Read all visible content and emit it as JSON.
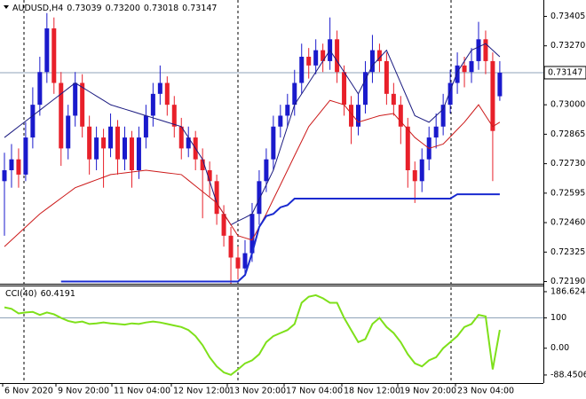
{
  "chart_data": {
    "type": "candlestick",
    "symbol": "AUDUSD,H4",
    "last_value_labels": [
      "0.73039",
      "0.73200",
      "0.73018",
      "0.73147"
    ],
    "bull_color": "#1a1acc",
    "bear_color": "#e8202a",
    "ylim": [
      0.7218,
      0.7348
    ],
    "yticks": [
      {
        "value": 0.73405,
        "label": "0.73405"
      },
      {
        "value": 0.7327,
        "label": "0.73270"
      },
      {
        "value": 0.73,
        "label": "0.73000"
      },
      {
        "value": 0.72865,
        "label": "0.72865"
      },
      {
        "value": 0.7273,
        "label": "0.72730"
      },
      {
        "value": 0.72595,
        "label": "0.72595"
      },
      {
        "value": 0.7246,
        "label": "0.72460"
      },
      {
        "value": 0.72325,
        "label": "0.72325"
      },
      {
        "value": 0.7219,
        "label": "0.72190"
      }
    ],
    "x_labels": [
      "6 Nov 2020",
      "9 Nov 20:00",
      "11 Nov 04:00",
      "12 Nov 12:00",
      "13 Nov 20:00",
      "17 Nov 04:00",
      "18 Nov 12:00",
      "19 Nov 20:00",
      "23 Nov 04:00"
    ],
    "candles": [
      [
        0.7265,
        0.7278,
        0.724,
        0.727
      ],
      [
        0.727,
        0.7282,
        0.7262,
        0.7275
      ],
      [
        0.7275,
        0.728,
        0.7262,
        0.7268
      ],
      [
        0.7268,
        0.7292,
        0.7265,
        0.7285
      ],
      [
        0.7285,
        0.7308,
        0.728,
        0.73
      ],
      [
        0.73,
        0.7322,
        0.7295,
        0.7315
      ],
      [
        0.7315,
        0.7342,
        0.731,
        0.7335
      ],
      [
        0.7335,
        0.734,
        0.7305,
        0.731
      ],
      [
        0.731,
        0.7315,
        0.7272,
        0.728
      ],
      [
        0.728,
        0.73,
        0.7275,
        0.7295
      ],
      [
        0.7295,
        0.7315,
        0.729,
        0.731
      ],
      [
        0.731,
        0.7314,
        0.7285,
        0.729
      ],
      [
        0.729,
        0.7295,
        0.7268,
        0.7275
      ],
      [
        0.7275,
        0.729,
        0.727,
        0.7285
      ],
      [
        0.7285,
        0.7289,
        0.7262,
        0.728
      ],
      [
        0.728,
        0.7296,
        0.7276,
        0.729
      ],
      [
        0.729,
        0.7293,
        0.7268,
        0.7275
      ],
      [
        0.7275,
        0.729,
        0.727,
        0.7285
      ],
      [
        0.7285,
        0.7288,
        0.7262,
        0.727
      ],
      [
        0.727,
        0.729,
        0.7266,
        0.7285
      ],
      [
        0.7285,
        0.73,
        0.728,
        0.7295
      ],
      [
        0.7295,
        0.731,
        0.729,
        0.7305
      ],
      [
        0.7305,
        0.7318,
        0.73,
        0.731
      ],
      [
        0.731,
        0.7313,
        0.7295,
        0.73
      ],
      [
        0.73,
        0.7304,
        0.7285,
        0.729
      ],
      [
        0.729,
        0.7294,
        0.7275,
        0.728
      ],
      [
        0.728,
        0.729,
        0.7276,
        0.7285
      ],
      [
        0.7285,
        0.7288,
        0.727,
        0.7275
      ],
      [
        0.7275,
        0.728,
        0.7248,
        0.727
      ],
      [
        0.727,
        0.7274,
        0.7258,
        0.7265
      ],
      [
        0.7265,
        0.7268,
        0.7245,
        0.725
      ],
      [
        0.725,
        0.7254,
        0.7235,
        0.724
      ],
      [
        0.724,
        0.7244,
        0.7218,
        0.723
      ],
      [
        0.723,
        0.7235,
        0.722,
        0.7225
      ],
      [
        0.7225,
        0.7238,
        0.7222,
        0.7232
      ],
      [
        0.7232,
        0.7255,
        0.7228,
        0.725
      ],
      [
        0.725,
        0.727,
        0.7245,
        0.7265
      ],
      [
        0.7265,
        0.728,
        0.726,
        0.7275
      ],
      [
        0.7275,
        0.7295,
        0.727,
        0.729
      ],
      [
        0.729,
        0.73,
        0.7285,
        0.7295
      ],
      [
        0.7295,
        0.7305,
        0.729,
        0.73
      ],
      [
        0.73,
        0.7316,
        0.7295,
        0.731
      ],
      [
        0.731,
        0.7328,
        0.7305,
        0.7322
      ],
      [
        0.7322,
        0.7326,
        0.7312,
        0.7318
      ],
      [
        0.7318,
        0.733,
        0.7314,
        0.7325
      ],
      [
        0.7325,
        0.7328,
        0.7315,
        0.732
      ],
      [
        0.732,
        0.734,
        0.7316,
        0.733
      ],
      [
        0.733,
        0.7334,
        0.731,
        0.7315
      ],
      [
        0.7315,
        0.7318,
        0.7295,
        0.73
      ],
      [
        0.73,
        0.7304,
        0.7282,
        0.729
      ],
      [
        0.729,
        0.7305,
        0.7286,
        0.73
      ],
      [
        0.73,
        0.732,
        0.7296,
        0.7315
      ],
      [
        0.7315,
        0.7332,
        0.731,
        0.7325
      ],
      [
        0.7325,
        0.7328,
        0.7315,
        0.732
      ],
      [
        0.732,
        0.7324,
        0.73,
        0.7305
      ],
      [
        0.7305,
        0.731,
        0.7295,
        0.73
      ],
      [
        0.73,
        0.7304,
        0.7282,
        0.729
      ],
      [
        0.729,
        0.7294,
        0.7262,
        0.727
      ],
      [
        0.727,
        0.7274,
        0.7255,
        0.7265
      ],
      [
        0.7265,
        0.728,
        0.726,
        0.7275
      ],
      [
        0.7275,
        0.729,
        0.727,
        0.7285
      ],
      [
        0.7285,
        0.7296,
        0.728,
        0.729
      ],
      [
        0.729,
        0.7305,
        0.7286,
        0.73
      ],
      [
        0.73,
        0.7316,
        0.7296,
        0.731
      ],
      [
        0.731,
        0.7324,
        0.7305,
        0.7318
      ],
      [
        0.7318,
        0.7322,
        0.7308,
        0.7315
      ],
      [
        0.7315,
        0.7326,
        0.731,
        0.732
      ],
      [
        0.732,
        0.7338,
        0.7316,
        0.733
      ],
      [
        0.733,
        0.7334,
        0.7314,
        0.732
      ],
      [
        0.732,
        0.7324,
        0.7265,
        0.7288
      ],
      [
        0.73039,
        0.732,
        0.73018,
        0.73147
      ]
    ],
    "lines": [
      {
        "color": "#1a1a80",
        "width": 1,
        "values": [
          0.7285,
          0.72875,
          0.729,
          0.72925,
          0.7295,
          0.72975,
          0.73,
          0.73025,
          0.7305,
          0.73075,
          0.731,
          0.7308,
          0.7306,
          0.7304,
          0.7302,
          0.73,
          0.7299,
          0.7298,
          0.7297,
          0.7296,
          0.7295,
          0.7294,
          0.7293,
          0.7292,
          0.7291,
          0.729,
          0.7285,
          0.728,
          0.7275,
          0.7265,
          0.7255,
          0.725,
          0.7245,
          0.72467,
          0.72483,
          0.725,
          0.72567,
          0.72633,
          0.727,
          0.728,
          0.729,
          0.73,
          0.7305,
          0.731,
          0.7315,
          0.732,
          0.7325,
          0.732,
          0.7315,
          0.731,
          0.7305,
          0.73115,
          0.7318,
          0.73215,
          0.7325,
          0.73175,
          0.731,
          0.73025,
          0.7295,
          0.72935,
          0.7292,
          0.7295,
          0.7298,
          0.73065,
          0.7315,
          0.732,
          0.7325,
          0.73265,
          0.7328,
          0.7325,
          0.7322
        ]
      },
      {
        "color": "#cc1a1a",
        "width": 1,
        "values": [
          0.7235,
          0.7238,
          0.7241,
          0.7244,
          0.7247,
          0.725,
          0.72524,
          0.72548,
          0.72572,
          0.72596,
          0.7262,
          0.72632,
          0.72644,
          0.72656,
          0.72668,
          0.7268,
          0.72684,
          0.72688,
          0.72692,
          0.72696,
          0.727,
          0.72696,
          0.72692,
          0.72688,
          0.72684,
          0.7268,
          0.72654,
          0.72628,
          0.72602,
          0.72576,
          0.7255,
          0.725,
          0.7245,
          0.724,
          0.7239,
          0.7238,
          0.7244,
          0.725,
          0.72567,
          0.72633,
          0.727,
          0.72767,
          0.72833,
          0.729,
          0.7294,
          0.7298,
          0.7302,
          0.7301,
          0.73,
          0.7296,
          0.7292,
          0.7293,
          0.7294,
          0.7295,
          0.72955,
          0.7296,
          0.72923,
          0.72887,
          0.7285,
          0.72825,
          0.728,
          0.7281,
          0.7282,
          0.72853,
          0.72887,
          0.7292,
          0.7296,
          0.73,
          0.7295,
          0.729,
          0.7292
        ]
      },
      {
        "color": "#1a2ad0",
        "width": 2,
        "values": [
          null,
          null,
          null,
          null,
          null,
          null,
          null,
          null,
          0.7219,
          0.7219,
          0.7219,
          0.7219,
          0.7219,
          0.7219,
          0.7219,
          0.7219,
          0.7219,
          0.7219,
          0.7219,
          0.7219,
          0.7219,
          0.7219,
          0.7219,
          0.7219,
          0.7219,
          0.7219,
          0.7219,
          0.7219,
          0.7219,
          0.7219,
          0.7219,
          0.7219,
          0.7219,
          0.7219,
          0.7222,
          0.7232,
          0.7244,
          0.7249,
          0.725,
          0.7253,
          0.7254,
          0.7257,
          0.7257,
          0.7257,
          0.7257,
          0.7257,
          0.7257,
          0.7257,
          0.7257,
          0.7257,
          0.7257,
          0.7257,
          0.7257,
          0.7257,
          0.7257,
          0.7257,
          0.7257,
          0.7257,
          0.7257,
          0.7257,
          0.7257,
          0.7257,
          0.7257,
          0.7257,
          0.7259,
          0.7259,
          0.7259,
          0.7259,
          0.7259,
          0.7259,
          0.7259
        ]
      }
    ],
    "cci": {
      "name": "CCI(40)",
      "color": "#7ee01a",
      "ylim": [
        -115,
        207
      ],
      "yticks": [
        186.6244,
        100,
        {
          "value": 0,
          "label": "0.00"
        },
        -88.4506
      ],
      "values": [
        135,
        130,
        115,
        118,
        120,
        110,
        118,
        112,
        100,
        90,
        85,
        88,
        80,
        82,
        85,
        82,
        80,
        78,
        82,
        80,
        85,
        88,
        85,
        80,
        75,
        70,
        60,
        40,
        10,
        -30,
        -60,
        -80,
        -88,
        -70,
        -50,
        -40,
        -20,
        20,
        40,
        50,
        60,
        80,
        150,
        170,
        175,
        165,
        150,
        150,
        100,
        60,
        20,
        30,
        80,
        100,
        70,
        50,
        20,
        -20,
        -50,
        -60,
        -40,
        -30,
        0,
        20,
        40,
        70,
        80,
        110,
        105,
        -70,
        60.4191
      ]
    }
  }
}
